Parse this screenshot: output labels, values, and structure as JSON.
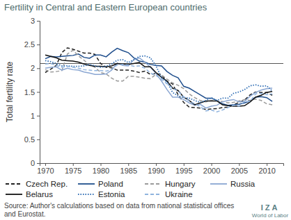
{
  "chart_data": {
    "type": "line",
    "title": "Fertility in Central and Eastern European countries",
    "y_label": "Total fertility rate",
    "x": [
      1970,
      1971,
      1972,
      1973,
      1974,
      1975,
      1976,
      1977,
      1978,
      1979,
      1980,
      1981,
      1982,
      1983,
      1984,
      1985,
      1986,
      1987,
      1988,
      1989,
      1990,
      1991,
      1992,
      1993,
      1994,
      1995,
      1996,
      1997,
      1998,
      1999,
      2000,
      2001,
      2002,
      2003,
      2004,
      2005,
      2006,
      2007,
      2008,
      2009,
      2010,
      2011
    ],
    "xlim": [
      1969,
      2013
    ],
    "xticks": [
      1970,
      1975,
      1980,
      1985,
      1990,
      1995,
      2000,
      2005,
      2010
    ],
    "ylim": [
      0,
      3
    ],
    "yticks": [
      0,
      0.5,
      1,
      1.5,
      2,
      2.5,
      3
    ],
    "reference_line": 2.1,
    "grid": false,
    "legend": "bottom",
    "series": [
      {
        "name": "Czech Rep.",
        "color": "#222222",
        "line_style": "dashed",
        "values": [
          1.91,
          1.98,
          2.06,
          2.33,
          2.43,
          2.4,
          2.36,
          2.32,
          2.32,
          2.29,
          2.1,
          2.02,
          2.01,
          1.96,
          1.96,
          1.96,
          1.94,
          1.91,
          1.94,
          1.87,
          1.89,
          1.86,
          1.72,
          1.67,
          1.44,
          1.28,
          1.18,
          1.17,
          1.16,
          1.13,
          1.14,
          1.15,
          1.17,
          1.18,
          1.23,
          1.28,
          1.33,
          1.44,
          1.5,
          1.49,
          1.49,
          1.43
        ]
      },
      {
        "name": "Poland",
        "color": "#1f4e8c",
        "line_style": "solid",
        "values": [
          2.2,
          2.25,
          2.24,
          2.25,
          2.26,
          2.27,
          2.3,
          2.23,
          2.21,
          2.28,
          2.28,
          2.24,
          2.34,
          2.42,
          2.37,
          2.33,
          2.22,
          2.15,
          2.13,
          2.08,
          2.06,
          2.05,
          1.93,
          1.85,
          1.8,
          1.62,
          1.58,
          1.51,
          1.44,
          1.37,
          1.37,
          1.32,
          1.25,
          1.22,
          1.23,
          1.24,
          1.27,
          1.31,
          1.39,
          1.4,
          1.38,
          1.3
        ]
      },
      {
        "name": "Hungary",
        "color": "#9a9a9a",
        "line_style": "dashed",
        "values": [
          1.97,
          1.92,
          1.93,
          1.95,
          2.3,
          2.38,
          2.26,
          2.17,
          2.07,
          2.02,
          1.91,
          1.88,
          1.79,
          1.73,
          1.73,
          1.83,
          1.83,
          1.81,
          1.79,
          1.78,
          1.87,
          1.86,
          1.77,
          1.69,
          1.64,
          1.57,
          1.46,
          1.38,
          1.32,
          1.29,
          1.32,
          1.31,
          1.3,
          1.27,
          1.28,
          1.31,
          1.34,
          1.32,
          1.35,
          1.32,
          1.25,
          1.23
        ]
      },
      {
        "name": "Russia",
        "color": "#8aa6d2",
        "line_style": "solid",
        "values": [
          2.0,
          2.02,
          2.03,
          1.96,
          2.0,
          1.97,
          1.96,
          1.92,
          1.9,
          1.87,
          1.87,
          1.88,
          1.96,
          2.11,
          2.06,
          2.05,
          2.18,
          2.22,
          2.13,
          2.02,
          1.89,
          1.73,
          1.55,
          1.39,
          1.39,
          1.34,
          1.27,
          1.22,
          1.24,
          1.16,
          1.2,
          1.22,
          1.29,
          1.32,
          1.34,
          1.29,
          1.3,
          1.41,
          1.49,
          1.54,
          1.57,
          1.58
        ]
      },
      {
        "name": "Belarus",
        "color": "#111111",
        "line_style": "solid",
        "values": [
          2.28,
          2.25,
          2.22,
          2.17,
          2.16,
          2.15,
          2.13,
          2.09,
          2.06,
          2.04,
          2.04,
          2.03,
          2.05,
          2.1,
          2.09,
          2.08,
          2.1,
          2.12,
          2.03,
          2.03,
          1.91,
          1.81,
          1.73,
          1.58,
          1.53,
          1.39,
          1.32,
          1.23,
          1.27,
          1.31,
          1.31,
          1.31,
          1.23,
          1.21,
          1.2,
          1.2,
          1.21,
          1.29,
          1.39,
          1.43,
          1.49,
          1.51
        ]
      },
      {
        "name": "Estonia",
        "color": "#2e6db4",
        "line_style": "dotted",
        "values": [
          2.16,
          2.14,
          2.1,
          2.05,
          2.05,
          2.04,
          2.04,
          2.05,
          2.08,
          2.05,
          2.02,
          2.04,
          2.09,
          2.17,
          2.18,
          2.12,
          2.18,
          2.25,
          2.26,
          2.22,
          2.05,
          1.8,
          1.71,
          1.49,
          1.42,
          1.38,
          1.37,
          1.32,
          1.28,
          1.32,
          1.38,
          1.32,
          1.37,
          1.37,
          1.47,
          1.5,
          1.55,
          1.63,
          1.65,
          1.62,
          1.63,
          1.52
        ]
      },
      {
        "name": "Ukraine",
        "color": "#8fb3de",
        "line_style": "dashed",
        "values": [
          2.09,
          2.1,
          2.06,
          2.02,
          2.04,
          2.02,
          2.0,
          1.97,
          1.96,
          1.95,
          1.95,
          1.94,
          1.97,
          2.07,
          2.08,
          2.07,
          2.04,
          2.05,
          2.0,
          1.9,
          1.85,
          1.77,
          1.67,
          1.58,
          1.52,
          1.4,
          1.31,
          1.25,
          1.19,
          1.1,
          1.12,
          1.08,
          1.12,
          1.17,
          1.22,
          1.2,
          1.3,
          1.3,
          1.46,
          1.47,
          1.44,
          1.46
        ]
      }
    ],
    "source": [
      "Source: Author's calculations based on data from national statistical offices",
      "and Eurostat."
    ],
    "logo": [
      "IZA",
      "World of Labor"
    ]
  }
}
